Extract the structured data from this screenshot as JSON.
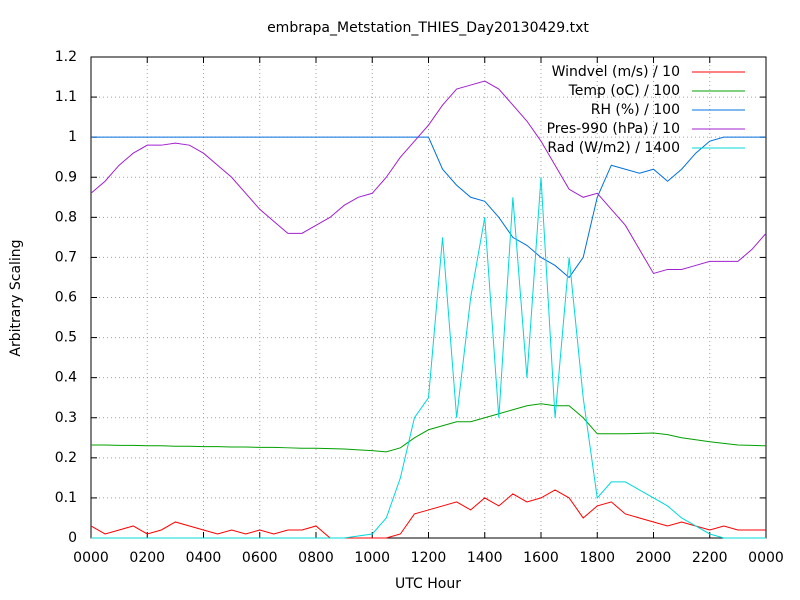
{
  "chart_data": {
    "type": "line",
    "title": "embrapa_Metstation_THIES_Day20130429.txt",
    "x_label": "UTC Hour",
    "y_label": "Arbitrary Scaling",
    "x": [
      0,
      0.5,
      1,
      1.5,
      2,
      2.5,
      3,
      3.5,
      4,
      4.5,
      5,
      5.5,
      6,
      6.5,
      7,
      7.5,
      8,
      8.5,
      9,
      9.5,
      10,
      10.5,
      11,
      11.5,
      12,
      12.5,
      13,
      13.5,
      14,
      14.5,
      15,
      15.5,
      16,
      16.5,
      17,
      17.5,
      18,
      18.5,
      19,
      19.5,
      20,
      20.5,
      21,
      21.5,
      22,
      22.5,
      23,
      23.5,
      24
    ],
    "series": [
      {
        "name": "Windvel (m/s) / 10",
        "color": "#ff0000",
        "values": [
          0.03,
          0.01,
          0.02,
          0.03,
          0.01,
          0.02,
          0.04,
          0.03,
          0.02,
          0.01,
          0.02,
          0.01,
          0.02,
          0.01,
          0.02,
          0.02,
          0.03,
          0,
          0,
          0,
          0,
          0,
          0.01,
          0.06,
          0.07,
          0.08,
          0.09,
          0.07,
          0.1,
          0.08,
          0.11,
          0.09,
          0.1,
          0.12,
          0.1,
          0.05,
          0.08,
          0.09,
          0.06,
          0.05,
          0.04,
          0.03,
          0.04,
          0.03,
          0.02,
          0.03,
          0.02,
          0.02,
          0.02
        ]
      },
      {
        "name": "Temp (oC) / 100",
        "color": "#00a000",
        "values": [
          0.232,
          0.232,
          0.231,
          0.231,
          0.23,
          0.23,
          0.229,
          0.229,
          0.228,
          0.228,
          0.227,
          0.227,
          0.226,
          0.226,
          0.225,
          0.224,
          0.224,
          0.223,
          0.222,
          0.22,
          0.218,
          0.215,
          0.225,
          0.25,
          0.27,
          0.28,
          0.29,
          0.29,
          0.3,
          0.31,
          0.32,
          0.33,
          0.335,
          0.33,
          0.33,
          0.3,
          0.26,
          0.26,
          0.26,
          0.261,
          0.262,
          0.258,
          0.25,
          0.245,
          0.24,
          0.236,
          0.232,
          0.231,
          0.23
        ]
      },
      {
        "name": "RH (%) / 100",
        "color": "#0070e0",
        "values": [
          1,
          1,
          1,
          1,
          1,
          1,
          1,
          1,
          1,
          1,
          1,
          1,
          1,
          1,
          1,
          1,
          1,
          1,
          1,
          1,
          1,
          1,
          1,
          1,
          1,
          0.92,
          0.88,
          0.85,
          0.84,
          0.8,
          0.75,
          0.73,
          0.7,
          0.68,
          0.65,
          0.7,
          0.85,
          0.93,
          0.92,
          0.91,
          0.92,
          0.89,
          0.92,
          0.96,
          0.99,
          1,
          1,
          1,
          1
        ]
      },
      {
        "name": "Pres-990 (hPa) / 10",
        "color": "#a020d0",
        "values": [
          0.86,
          0.89,
          0.93,
          0.96,
          0.98,
          0.98,
          0.985,
          0.98,
          0.96,
          0.93,
          0.9,
          0.86,
          0.82,
          0.79,
          0.76,
          0.76,
          0.78,
          0.8,
          0.83,
          0.85,
          0.86,
          0.9,
          0.95,
          0.99,
          1.03,
          1.08,
          1.12,
          1.13,
          1.14,
          1.12,
          1.08,
          1.04,
          0.99,
          0.93,
          0.87,
          0.85,
          0.86,
          0.82,
          0.78,
          0.72,
          0.66,
          0.67,
          0.67,
          0.68,
          0.69,
          0.69,
          0.69,
          0.72,
          0.76
        ]
      },
      {
        "name": "Rad (W/m2) / 1400",
        "color": "#00d8d8",
        "values": [
          0,
          0,
          0,
          0,
          0,
          0,
          0,
          0,
          0,
          0,
          0,
          0,
          0,
          0,
          0,
          0,
          0,
          0,
          0,
          0.005,
          0.01,
          0.05,
          0.15,
          0.3,
          0.35,
          0.75,
          0.3,
          0.6,
          0.8,
          0.3,
          0.85,
          0.4,
          0.9,
          0.3,
          0.7,
          0.35,
          0.1,
          0.14,
          0.14,
          0.12,
          0.1,
          0.08,
          0.05,
          0.03,
          0.01,
          0,
          0,
          0,
          0
        ]
      }
    ],
    "xlim": [
      0,
      24
    ],
    "xticks": [
      {
        "value": 0,
        "label": "0000"
      },
      {
        "value": 2,
        "label": "0200"
      },
      {
        "value": 4,
        "label": "0400"
      },
      {
        "value": 6,
        "label": "0600"
      },
      {
        "value": 8,
        "label": "0800"
      },
      {
        "value": 10,
        "label": "1000"
      },
      {
        "value": 12,
        "label": "1200"
      },
      {
        "value": 14,
        "label": "1400"
      },
      {
        "value": 16,
        "label": "1600"
      },
      {
        "value": 18,
        "label": "1800"
      },
      {
        "value": 20,
        "label": "2000"
      },
      {
        "value": 22,
        "label": "2200"
      },
      {
        "value": 24,
        "label": "0000"
      }
    ],
    "ylim": [
      0,
      1.2
    ],
    "yticks": [
      0,
      0.1,
      0.2,
      0.3,
      0.4,
      0.5,
      0.6,
      0.7,
      0.8,
      0.9,
      1,
      1.1,
      1.2
    ],
    "grid": true,
    "legend": "upper right"
  }
}
